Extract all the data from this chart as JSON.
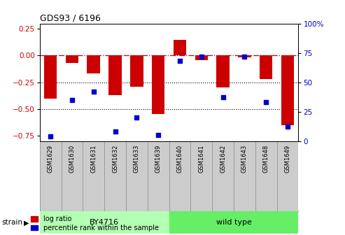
{
  "title": "GDS93 / 6196",
  "samples": [
    "GSM1629",
    "GSM1630",
    "GSM1631",
    "GSM1632",
    "GSM1633",
    "GSM1639",
    "GSM1640",
    "GSM1641",
    "GSM1642",
    "GSM1643",
    "GSM1648",
    "GSM1649"
  ],
  "log_ratio": [
    -0.4,
    -0.07,
    -0.17,
    -0.37,
    -0.29,
    -0.55,
    0.15,
    -0.04,
    -0.3,
    -0.02,
    -0.22,
    -0.65
  ],
  "percentile_rank": [
    4,
    35,
    42,
    8,
    20,
    5,
    68,
    72,
    37,
    72,
    33,
    12
  ],
  "strain_groups": [
    {
      "label": "BY4716",
      "start": 0,
      "end": 5,
      "color": "#b3ffb3"
    },
    {
      "label": "wild type",
      "start": 6,
      "end": 11,
      "color": "#66ee66"
    }
  ],
  "strain_label": "strain",
  "bar_color": "#cc0000",
  "dot_color": "#0000cc",
  "ylim_left": [
    -0.8,
    0.3
  ],
  "ylim_right": [
    0,
    100
  ],
  "yticks_left": [
    0.25,
    0.0,
    -0.25,
    -0.5,
    -0.75
  ],
  "yticks_right": [
    100,
    75,
    50,
    25,
    0
  ],
  "dotted_lines": [
    -0.25,
    -0.5
  ],
  "bar_width": 0.6,
  "background_color": "#ffffff"
}
